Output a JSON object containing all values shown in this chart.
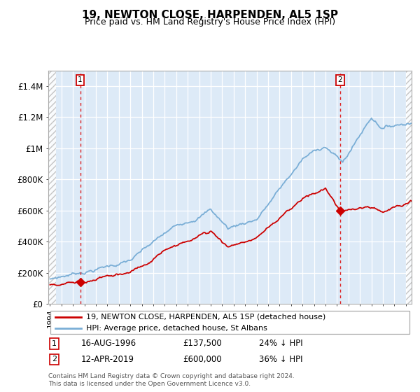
{
  "title": "19, NEWTON CLOSE, HARPENDEN, AL5 1SP",
  "subtitle": "Price paid vs. HM Land Registry's House Price Index (HPI)",
  "legend_line1": "19, NEWTON CLOSE, HARPENDEN, AL5 1SP (detached house)",
  "legend_line2": "HPI: Average price, detached house, St Albans",
  "annotation1_date": "16-AUG-1996",
  "annotation1_price": "£137,500",
  "annotation1_hpi": "24% ↓ HPI",
  "annotation2_date": "12-APR-2019",
  "annotation2_price": "£600,000",
  "annotation2_hpi": "36% ↓ HPI",
  "footer": "Contains HM Land Registry data © Crown copyright and database right 2024.\nThis data is licensed under the Open Government Licence v3.0.",
  "ylim_max": 1500000,
  "bg_color": "#ddeaf7",
  "red_line_color": "#cc0000",
  "blue_line_color": "#7aaed6",
  "sale1_date_num": 1996.627,
  "sale1_price": 137500,
  "sale2_date_num": 2019.277,
  "sale2_price": 600000
}
